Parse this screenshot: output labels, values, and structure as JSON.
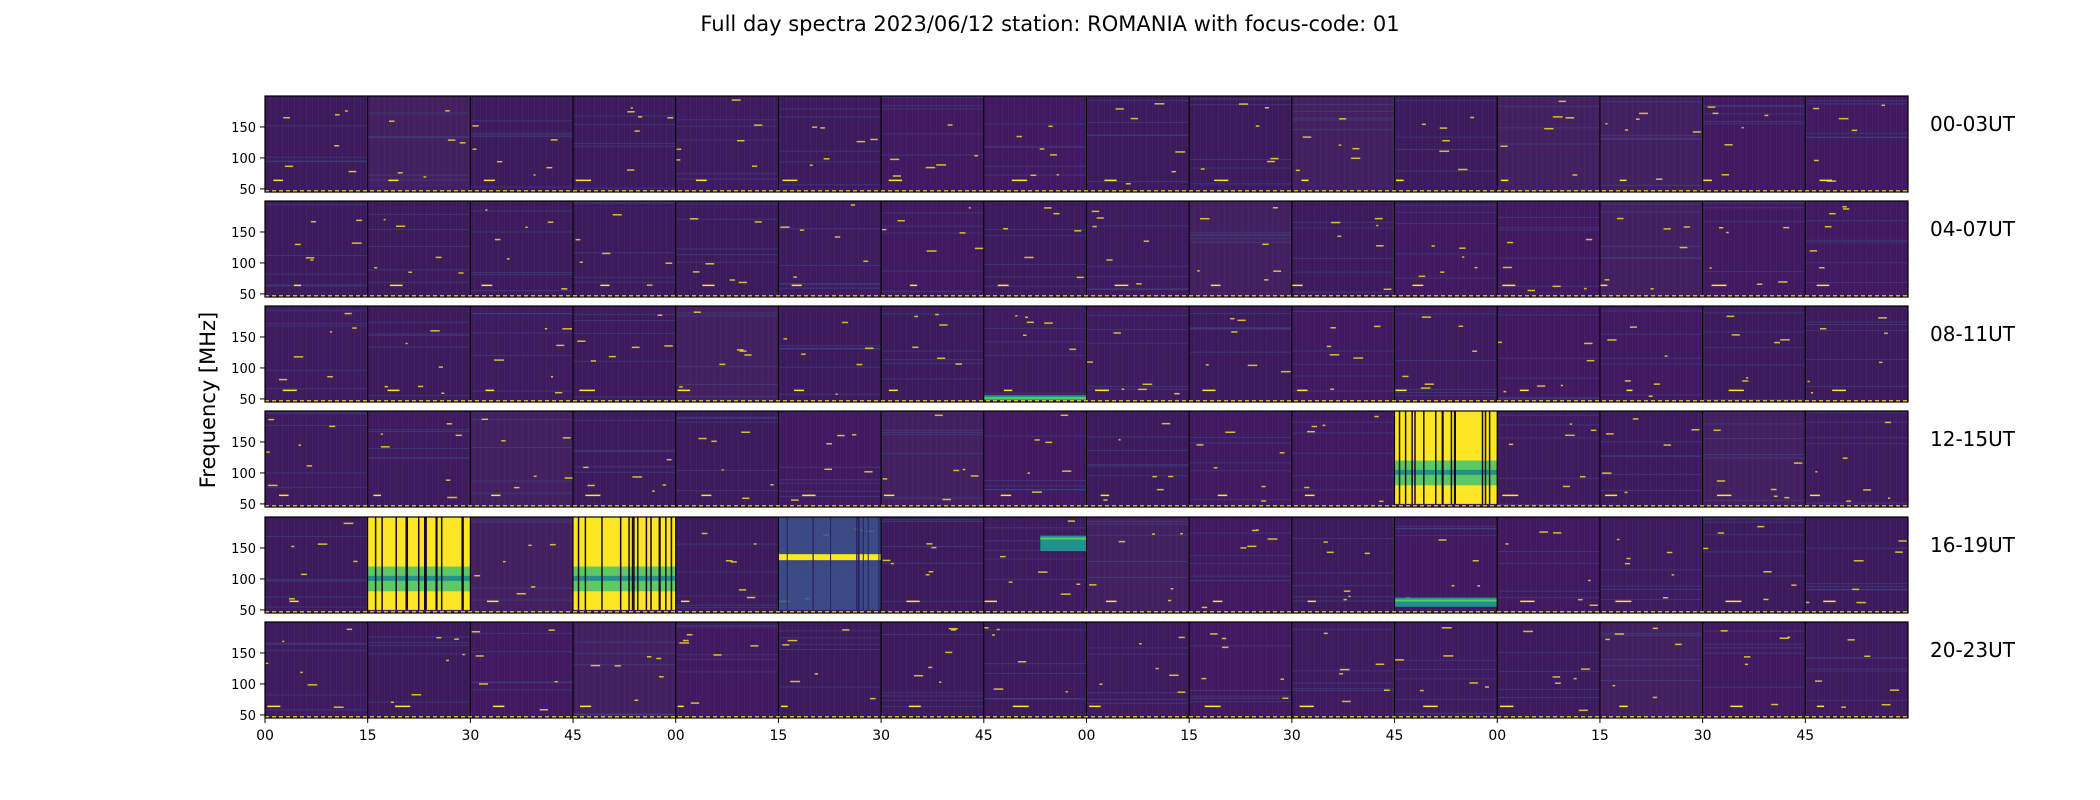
{
  "chart_data": {
    "type": "heatmap",
    "title": "Full day spectra 2023/06/12 station: ROMANIA with focus-code: 01",
    "ylabel": "Frequency [MHz]",
    "y_ticks": [
      "150",
      "100",
      "50"
    ],
    "x_ticks": [
      "00",
      "15",
      "30",
      "45",
      "00",
      "15",
      "30",
      "45",
      "00",
      "15",
      "30",
      "45",
      "00",
      "15",
      "30",
      "45"
    ],
    "rows": [
      "00-03UT",
      "04-07UT",
      "08-11UT",
      "12-15UT",
      "16-19UT",
      "20-23UT"
    ],
    "panels_per_row": 16,
    "ylim": [
      45,
      200
    ],
    "colormap": [
      "#440154",
      "#3b528b",
      "#21918c",
      "#5ec962",
      "#fde725"
    ],
    "burst_panels": [
      {
        "row": 3,
        "panel": 11,
        "level": "high",
        "freq_range": [
          50,
          200
        ]
      },
      {
        "row": 4,
        "panel": 1,
        "level": "high",
        "freq_range": [
          50,
          200
        ]
      },
      {
        "row": 4,
        "panel": 3,
        "level": "high",
        "freq_range": [
          50,
          200
        ]
      },
      {
        "row": 4,
        "panel": 5,
        "level": "medium",
        "freq_range": [
          50,
          200
        ]
      },
      {
        "row": 4,
        "panel": 7,
        "level": "medium",
        "freq_range": [
          145,
          170
        ]
      },
      {
        "row": 4,
        "panel": 11,
        "level": "medium",
        "freq_range": [
          55,
          70
        ]
      },
      {
        "row": 2,
        "panel": 7,
        "level": "medium",
        "freq_range": [
          48,
          56
        ]
      }
    ]
  }
}
